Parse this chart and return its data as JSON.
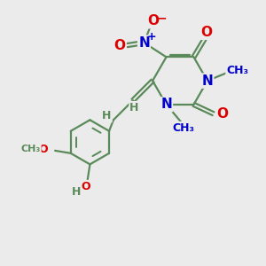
{
  "fig_bg": "#ebebeb",
  "bond_color": "#5a8a5a",
  "bond_width": 1.6,
  "atom_colors": {
    "O": "#dd0000",
    "N": "#0000cc",
    "C": "#5a8a5a",
    "H": "#5a8a5a"
  },
  "font_size_atom": 11,
  "font_size_small": 9,
  "xlim": [
    0,
    10
  ],
  "ylim": [
    0,
    10
  ]
}
